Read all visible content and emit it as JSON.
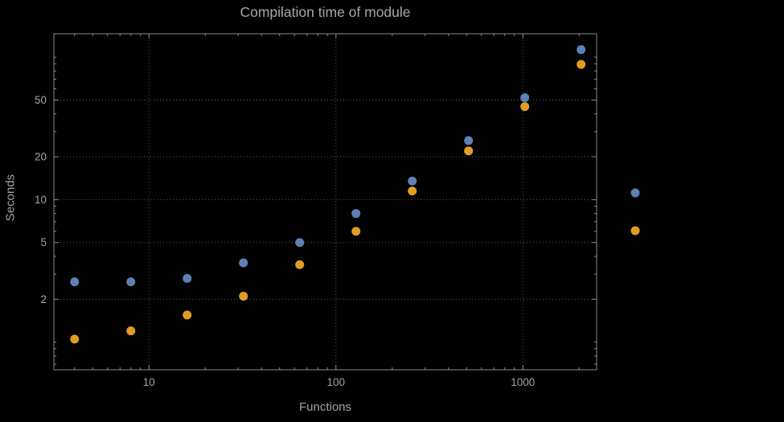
{
  "chart_data": {
    "type": "scatter",
    "title": "Compilation time of module",
    "xlabel": "Functions",
    "ylabel": "Seconds",
    "x_scale": "log",
    "y_scale": "log",
    "xlim": [
      3.1,
      2480
    ],
    "ylim": [
      0.64,
      146
    ],
    "grid": "dotted lines at labeled ticks",
    "x_ticks": [
      {
        "value": 10,
        "label": "10"
      },
      {
        "value": 100,
        "label": "100"
      },
      {
        "value": 1000,
        "label": "1000"
      }
    ],
    "y_ticks": [
      {
        "value": 2,
        "label": "2"
      },
      {
        "value": 5,
        "label": "5"
      },
      {
        "value": 10,
        "label": "10"
      },
      {
        "value": 20,
        "label": "20"
      },
      {
        "value": 50,
        "label": "50"
      }
    ],
    "series": [
      {
        "name": "series-1-blue",
        "color": "#5e81b5",
        "x": [
          4,
          8,
          16,
          32,
          64,
          128,
          256,
          512,
          1024,
          2048
        ],
        "y": [
          2.65,
          2.65,
          2.8,
          3.6,
          5.0,
          8.0,
          13.5,
          26,
          52,
          113
        ]
      },
      {
        "name": "series-2-orange",
        "color": "#e19c24",
        "x": [
          4,
          8,
          16,
          32,
          64,
          128,
          256,
          512,
          1024,
          2048
        ],
        "y": [
          1.05,
          1.2,
          1.55,
          2.1,
          3.5,
          6.0,
          11.5,
          22,
          45,
          89
        ]
      }
    ],
    "legend": {
      "position": "right-middle",
      "entries": [
        {
          "series": "series-1-blue",
          "label": ""
        },
        {
          "series": "series-2-orange",
          "label": ""
        }
      ]
    },
    "colors": {
      "background": "#000000",
      "text": "#a3a3a5",
      "grid": "#5e5e5e",
      "frame": "#8a8a8a",
      "series1": "#5e81b5",
      "series2": "#e19c24"
    }
  }
}
